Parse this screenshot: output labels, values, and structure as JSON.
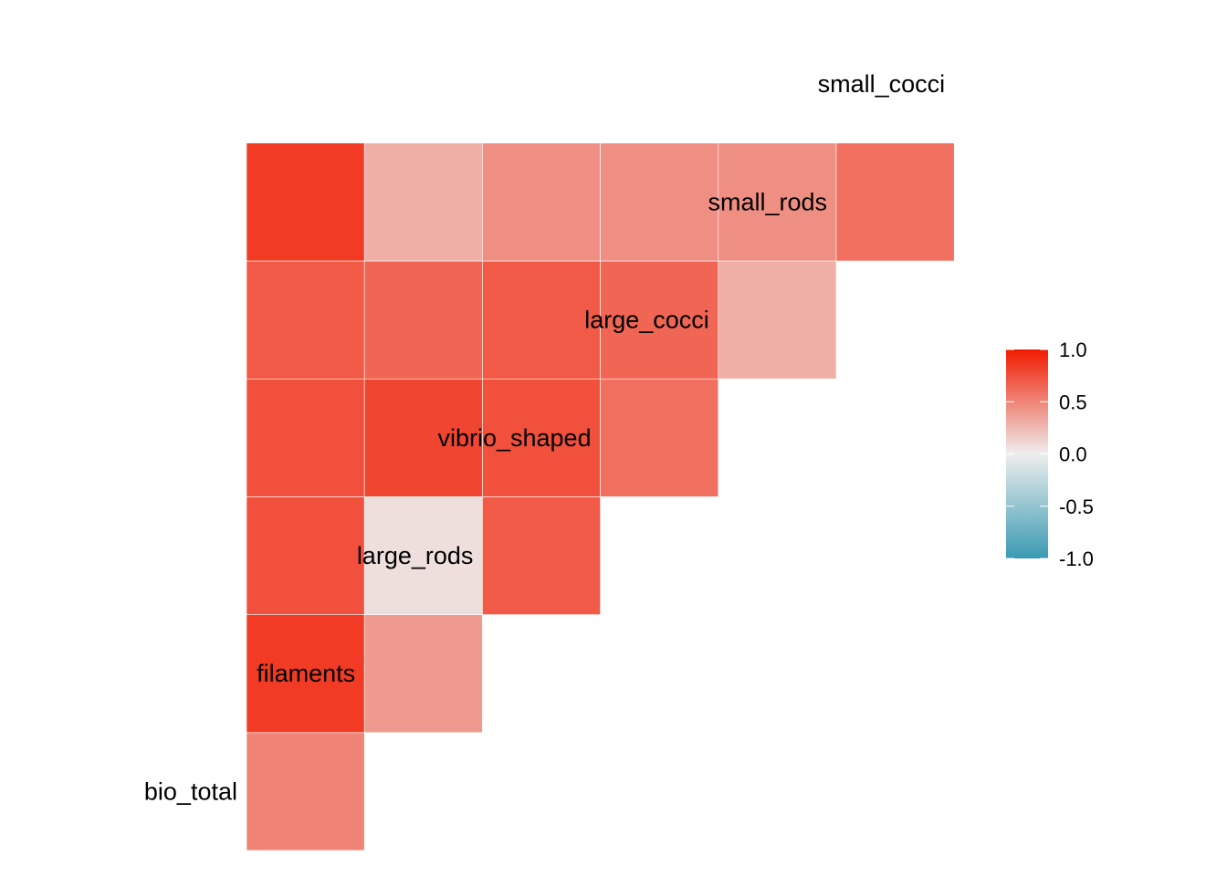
{
  "chart_data": {
    "type": "heatmap",
    "variables": [
      "bio_total",
      "filaments",
      "large_rods",
      "vibrio_shaped",
      "large_cocci",
      "small_rods",
      "small_cocci"
    ],
    "cells": [
      {
        "row": "filaments",
        "col": "bio_total",
        "value": 0.5
      },
      {
        "row": "large_rods",
        "col": "bio_total",
        "value": 0.85
      },
      {
        "row": "large_rods",
        "col": "filaments",
        "value": 0.4
      },
      {
        "row": "vibrio_shaped",
        "col": "bio_total",
        "value": 0.75
      },
      {
        "row": "vibrio_shaped",
        "col": "filaments",
        "value": 0.07
      },
      {
        "row": "vibrio_shaped",
        "col": "large_rods",
        "value": 0.7
      },
      {
        "row": "large_cocci",
        "col": "bio_total",
        "value": 0.75
      },
      {
        "row": "large_cocci",
        "col": "filaments",
        "value": 0.8
      },
      {
        "row": "large_cocci",
        "col": "large_rods",
        "value": 0.75
      },
      {
        "row": "large_cocci",
        "col": "vibrio_shaped",
        "value": 0.6
      },
      {
        "row": "small_rods",
        "col": "bio_total",
        "value": 0.7
      },
      {
        "row": "small_rods",
        "col": "filaments",
        "value": 0.65
      },
      {
        "row": "small_rods",
        "col": "large_rods",
        "value": 0.7
      },
      {
        "row": "small_rods",
        "col": "vibrio_shaped",
        "value": 0.65
      },
      {
        "row": "small_rods",
        "col": "large_cocci",
        "value": 0.3
      },
      {
        "row": "small_cocci",
        "col": "bio_total",
        "value": 0.85
      },
      {
        "row": "small_cocci",
        "col": "filaments",
        "value": 0.3
      },
      {
        "row": "small_cocci",
        "col": "large_rods",
        "value": 0.45
      },
      {
        "row": "small_cocci",
        "col": "vibrio_shaped",
        "value": 0.45
      },
      {
        "row": "small_cocci",
        "col": "large_cocci",
        "value": 0.45
      },
      {
        "row": "small_cocci",
        "col": "small_rods",
        "value": 0.6
      }
    ],
    "color_scale": {
      "low": "#3A9AB2",
      "mid": "#EEEEEE",
      "high": "#F11B00",
      "limits": [
        -1.0,
        1.0
      ]
    },
    "legend": {
      "ticks": [
        "1.0",
        "0.5",
        "0.0",
        "-0.5",
        "-1.0"
      ],
      "placement": "right"
    },
    "title": "",
    "xlabel": "",
    "ylabel": ""
  }
}
